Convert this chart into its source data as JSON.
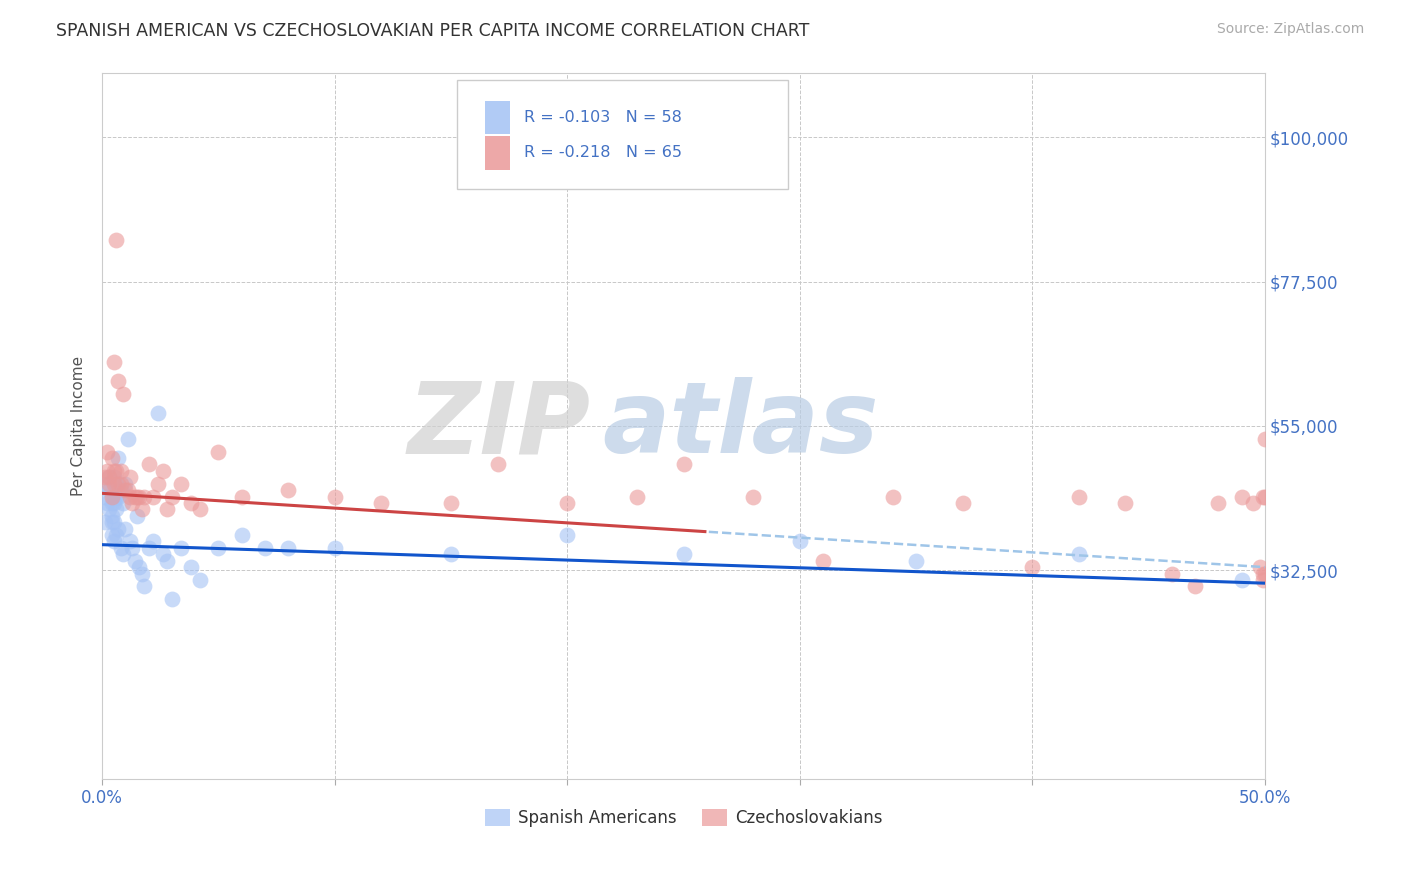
{
  "title": "SPANISH AMERICAN VS CZECHOSLOVAKIAN PER CAPITA INCOME CORRELATION CHART",
  "source": "Source: ZipAtlas.com",
  "ylabel": "Per Capita Income",
  "xlim": [
    0.0,
    0.5
  ],
  "ylim": [
    0,
    110000
  ],
  "yticks": [
    0,
    32500,
    55000,
    77500,
    100000
  ],
  "ytick_labels": [
    "",
    "$32,500",
    "$55,000",
    "$77,500",
    "$100,000"
  ],
  "xticks": [
    0.0,
    0.1,
    0.2,
    0.3,
    0.4,
    0.5
  ],
  "xtick_labels": [
    "0.0%",
    "",
    "",
    "",
    "",
    "50.0%"
  ],
  "grid_color": "#c8c8c8",
  "background_color": "#ffffff",
  "watermark_zip": "ZIP",
  "watermark_atlas": "atlas",
  "watermark_zip_color": "#d0d0d0",
  "watermark_atlas_color": "#b8cce4",
  "legend_r1_text": "R = -0.103",
  "legend_n1_text": "N = 58",
  "legend_r2_text": "R = -0.218",
  "legend_n2_text": "N = 65",
  "legend_r_color": "#4472c4",
  "legend_n_color": "#4472c4",
  "axis_label_color": "#4472c4",
  "series1_color": "#a4c2f4",
  "series2_color": "#ea9999",
  "trendline1_color": "#1155cc",
  "trendline2_color": "#cc4444",
  "trendline_dashed_color": "#9fc5e8",
  "series1_label": "Spanish Americans",
  "series2_label": "Czechoslovakians",
  "trendline1_intercept": 36500,
  "trendline1_slope": -12000,
  "trendline2_intercept": 44500,
  "trendline2_slope": -23000,
  "trendline2_solid_end": 0.26,
  "spanish_x": [
    0.001,
    0.001,
    0.002,
    0.002,
    0.003,
    0.003,
    0.003,
    0.004,
    0.004,
    0.004,
    0.004,
    0.005,
    0.005,
    0.005,
    0.005,
    0.005,
    0.006,
    0.006,
    0.006,
    0.006,
    0.007,
    0.007,
    0.007,
    0.008,
    0.008,
    0.009,
    0.009,
    0.01,
    0.01,
    0.011,
    0.012,
    0.013,
    0.014,
    0.015,
    0.016,
    0.017,
    0.018,
    0.02,
    0.022,
    0.024,
    0.026,
    0.028,
    0.03,
    0.034,
    0.038,
    0.042,
    0.05,
    0.06,
    0.07,
    0.08,
    0.1,
    0.15,
    0.2,
    0.25,
    0.3,
    0.35,
    0.42,
    0.49
  ],
  "spanish_y": [
    44000,
    40000,
    46000,
    43000,
    47000,
    45000,
    42000,
    43000,
    41000,
    40000,
    38000,
    47000,
    44000,
    43000,
    40000,
    37000,
    46000,
    44000,
    42000,
    38000,
    50000,
    44000,
    39000,
    45000,
    36000,
    43000,
    35000,
    46000,
    39000,
    53000,
    37000,
    36000,
    34000,
    41000,
    33000,
    32000,
    30000,
    36000,
    37000,
    57000,
    35000,
    34000,
    28000,
    36000,
    33000,
    31000,
    36000,
    38000,
    36000,
    36000,
    36000,
    35000,
    38000,
    35000,
    37000,
    34000,
    35000,
    31000
  ],
  "czech_x": [
    0.001,
    0.002,
    0.002,
    0.003,
    0.003,
    0.004,
    0.004,
    0.005,
    0.005,
    0.005,
    0.006,
    0.006,
    0.007,
    0.007,
    0.008,
    0.008,
    0.009,
    0.01,
    0.011,
    0.012,
    0.012,
    0.013,
    0.014,
    0.015,
    0.016,
    0.017,
    0.018,
    0.02,
    0.022,
    0.024,
    0.026,
    0.028,
    0.03,
    0.034,
    0.038,
    0.042,
    0.05,
    0.06,
    0.08,
    0.1,
    0.12,
    0.15,
    0.17,
    0.2,
    0.23,
    0.25,
    0.28,
    0.31,
    0.34,
    0.37,
    0.4,
    0.42,
    0.44,
    0.46,
    0.47,
    0.48,
    0.49,
    0.495,
    0.498,
    0.499,
    0.499,
    0.499,
    0.5,
    0.5,
    0.5
  ],
  "czech_y": [
    47000,
    48000,
    51000,
    47000,
    46000,
    50000,
    44000,
    65000,
    48000,
    46000,
    84000,
    48000,
    62000,
    46000,
    48000,
    46000,
    60000,
    45000,
    45000,
    44000,
    47000,
    43000,
    44000,
    44000,
    44000,
    42000,
    44000,
    49000,
    44000,
    46000,
    48000,
    42000,
    44000,
    46000,
    43000,
    42000,
    51000,
    44000,
    45000,
    44000,
    43000,
    43000,
    49000,
    43000,
    44000,
    49000,
    44000,
    34000,
    44000,
    43000,
    33000,
    44000,
    43000,
    32000,
    30000,
    43000,
    44000,
    43000,
    33000,
    32000,
    44000,
    31000,
    44000,
    32000,
    53000
  ]
}
